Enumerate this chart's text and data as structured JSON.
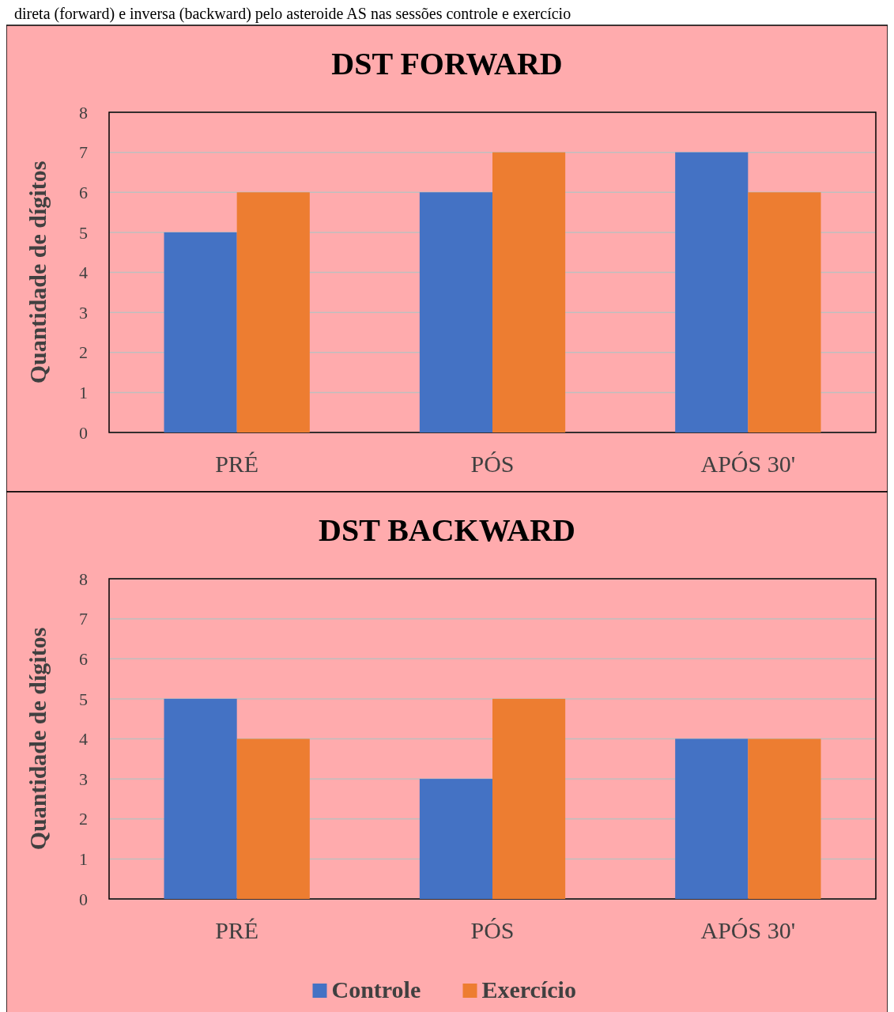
{
  "chart_data": [
    {
      "type": "bar",
      "title": "DST FORWARD",
      "ylabel": "Quantidade de dígitos",
      "annotations": [
        "direta (forward) e inversa (backward) pelo asteroide AS nas sessões controle e exercício"
      ],
      "categories": [
        "PRÉ",
        "PÓS",
        "APÓS 30'"
      ],
      "series": [
        {
          "color": "#4472c4",
          "values": [
            5,
            6,
            7
          ]
        },
        {
          "color": "#ed7d31",
          "values": [
            6,
            7,
            6
          ]
        }
      ],
      "ylim": [
        0,
        8
      ],
      "yticks": [
        0,
        1,
        2,
        3,
        4,
        5,
        6,
        7,
        8
      ],
      "grid": "y",
      "legend": false
    },
    {
      "type": "bar",
      "title": "DST BACKWARD",
      "ylabel": "Quantidade de dígitos",
      "categories": [
        "PRÉ",
        "PÓS",
        "APÓS 30'"
      ],
      "series": [
        {
          "name": "Controle",
          "color": "#4472c4",
          "values": [
            5,
            3,
            4
          ]
        },
        {
          "name": "Exercício",
          "color": "#ed7d31",
          "values": [
            4,
            5,
            4
          ]
        }
      ],
      "ylim": [
        0,
        8
      ],
      "yticks": [
        0,
        1,
        2,
        3,
        4,
        5,
        6,
        7,
        8
      ],
      "grid": "y",
      "legend": "bottom"
    }
  ]
}
